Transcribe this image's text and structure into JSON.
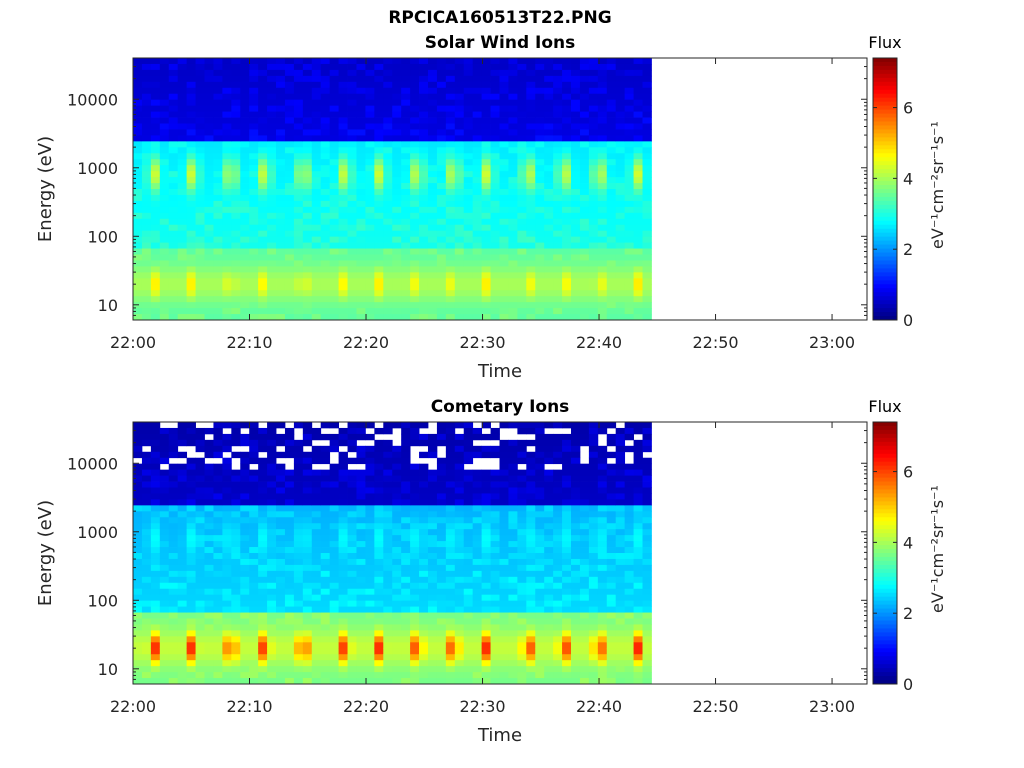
{
  "figure": {
    "filename": "RPCICA160513T22.PNG"
  },
  "chart_data": [
    {
      "type": "heatmap",
      "title": "Solar Wind Ions",
      "xlabel": "Time",
      "ylabel": "Energy (eV)",
      "x_range": [
        "22:00",
        "23:03"
      ],
      "x_ticks": [
        "22:00",
        "22:10",
        "22:20",
        "22:30",
        "22:40",
        "22:50",
        "23:00"
      ],
      "data_end": "22:44:30",
      "y_scale": "log",
      "y_range": [
        6,
        40000
      ],
      "y_ticks": [
        "10",
        "100",
        "1000",
        "10000"
      ],
      "colorbar": {
        "title": "Flux",
        "label": "eV⁻¹cm⁻²sr⁻¹s⁻¹",
        "ticks": [
          "0",
          "2",
          "4",
          "6"
        ],
        "range": [
          0,
          7.4
        ],
        "colormap": "jet"
      },
      "pulse_times_min": [
        1.8,
        5.1,
        8.4,
        11.3,
        14.6,
        18.2,
        21.2,
        24.4,
        27.5,
        30.4,
        33.9,
        37.0,
        40.0,
        43.3
      ],
      "features": [
        {
          "name": "solar wind peak",
          "energy_eV": 800,
          "flux": 4.3
        },
        {
          "name": "low energy peak",
          "energy_eV": 20,
          "flux": 4.8
        }
      ],
      "background_flux": [
        0.7,
        2.6,
        3.4
      ]
    },
    {
      "type": "heatmap",
      "title": "Cometary Ions",
      "xlabel": "Time",
      "ylabel": "Energy (eV)",
      "x_range": [
        "22:00",
        "23:03"
      ],
      "x_ticks": [
        "22:00",
        "22:10",
        "22:20",
        "22:30",
        "22:40",
        "22:50",
        "23:00"
      ],
      "data_end": "22:44:30",
      "y_scale": "log",
      "y_range": [
        6,
        40000
      ],
      "y_ticks": [
        "10",
        "100",
        "1000",
        "10000"
      ],
      "colorbar": {
        "title": "Flux",
        "label": "eV⁻¹cm⁻²sr⁻¹s⁻¹",
        "ticks": [
          "0",
          "2",
          "4",
          "6"
        ],
        "range": [
          0,
          7.4
        ],
        "colormap": "jet"
      },
      "pulse_times_min": [
        1.8,
        5.1,
        8.4,
        11.3,
        14.6,
        18.2,
        21.2,
        24.4,
        27.5,
        30.4,
        33.9,
        37.0,
        40.0,
        43.3
      ],
      "features": [
        {
          "name": "solar wind peak",
          "energy_eV": 800,
          "flux": 2.8
        },
        {
          "name": "low energy peak",
          "energy_eV": 20,
          "flux": 6.3
        }
      ],
      "background_flux": [
        0.5,
        2.2,
        3.6
      ]
    }
  ]
}
